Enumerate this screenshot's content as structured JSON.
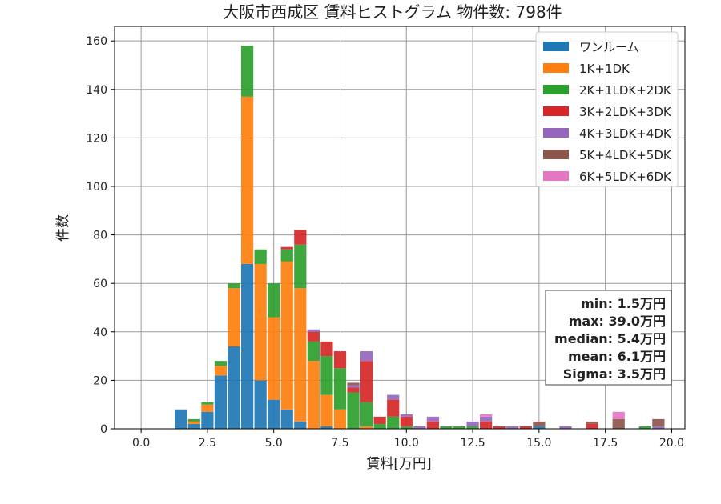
{
  "chart_data": {
    "type": "bar",
    "stacked": true,
    "title": "大阪市西成区 賃料ヒストグラム 物件数: 798件",
    "xlabel": "賃料[万円]",
    "ylabel": "件数",
    "xlim": [
      -1.0,
      20.5
    ],
    "ylim": [
      0,
      166
    ],
    "x_ticks": [
      0.0,
      2.5,
      5.0,
      7.5,
      10.0,
      12.5,
      15.0,
      17.5,
      20.0
    ],
    "x_tick_labels": [
      "0.0",
      "2.5",
      "5.0",
      "7.5",
      "10.0",
      "12.5",
      "15.0",
      "17.5",
      "20.0"
    ],
    "y_ticks": [
      0,
      20,
      40,
      60,
      80,
      100,
      120,
      140,
      160
    ],
    "y_tick_labels": [
      "0",
      "20",
      "40",
      "60",
      "80",
      "100",
      "120",
      "140",
      "160"
    ],
    "grid": true,
    "legend_position": "top-right",
    "bin_width": 0.5,
    "x": [
      1.5,
      2.0,
      2.5,
      3.0,
      3.5,
      4.0,
      4.5,
      5.0,
      5.5,
      6.0,
      6.5,
      7.0,
      7.5,
      8.0,
      8.5,
      9.0,
      9.5,
      10.0,
      10.5,
      11.0,
      11.5,
      12.0,
      12.5,
      13.0,
      13.5,
      14.0,
      14.5,
      15.0,
      16.0,
      17.0,
      18.0,
      19.0,
      19.5
    ],
    "series": [
      {
        "name": "ワンルーム",
        "color": "#1f77b4",
        "values": [
          8,
          2,
          7,
          22,
          34,
          68,
          20,
          12,
          8,
          3,
          0,
          1,
          0,
          0,
          0,
          0,
          0,
          0,
          0,
          0,
          0,
          0,
          0,
          0,
          0,
          0,
          0,
          1,
          0,
          0,
          0,
          0,
          0
        ]
      },
      {
        "name": "1K+1DK",
        "color": "#ff7f0e",
        "values": [
          0,
          1,
          3,
          4,
          24,
          69,
          48,
          34,
          61,
          55,
          28,
          13,
          8,
          0,
          1,
          0,
          0,
          0,
          0,
          0,
          0,
          0,
          0,
          0,
          0,
          0,
          0,
          0,
          0,
          0,
          0,
          0,
          0
        ]
      },
      {
        "name": "2K+1LDK+2DK",
        "color": "#2ca02c",
        "values": [
          0,
          1,
          1,
          2,
          2,
          21,
          6,
          14,
          5,
          18,
          8,
          16,
          17,
          15,
          10,
          2,
          5,
          1,
          0,
          0,
          1,
          1,
          1,
          0,
          0,
          0,
          0,
          0,
          0,
          0,
          0,
          1,
          0
        ]
      },
      {
        "name": "3K+2LDK+3DK",
        "color": "#d62728",
        "values": [
          0,
          0,
          0,
          0,
          0,
          0,
          0,
          0,
          1,
          6,
          4,
          6,
          7,
          2,
          17,
          3,
          7,
          4,
          0,
          3,
          0,
          0,
          0,
          3,
          1,
          0,
          1,
          0,
          0,
          2,
          0,
          0,
          0
        ]
      },
      {
        "name": "4K+3LDK+4DK",
        "color": "#9467bd",
        "values": [
          0,
          0,
          0,
          0,
          0,
          0,
          0,
          0,
          0,
          0,
          1,
          0,
          0,
          1,
          4,
          0,
          2,
          1,
          1,
          2,
          0,
          0,
          2,
          2,
          0,
          1,
          0,
          0,
          1,
          0,
          0,
          0,
          1
        ]
      },
      {
        "name": "5K+4LDK+5DK",
        "color": "#8c564b",
        "values": [
          0,
          0,
          0,
          0,
          0,
          0,
          0,
          0,
          0,
          0,
          0,
          0,
          0,
          1,
          0,
          0,
          0,
          0,
          0,
          0,
          0,
          0,
          0,
          0,
          0,
          0,
          0,
          2,
          0,
          1,
          4,
          0,
          3
        ]
      },
      {
        "name": "6K+5LDK+6DK",
        "color": "#e377c2",
        "values": [
          0,
          0,
          0,
          0,
          0,
          0,
          0,
          0,
          0,
          0,
          0,
          0,
          0,
          0,
          0,
          0,
          0,
          0,
          0,
          0,
          0,
          0,
          0,
          1,
          0,
          0,
          0,
          0,
          0,
          0,
          3,
          0,
          0
        ]
      }
    ],
    "stats": [
      "min: 1.5万円",
      "max: 39.0万円",
      "median: 5.4万円",
      "mean: 6.1万円",
      "Sigma: 3.5万円"
    ]
  }
}
